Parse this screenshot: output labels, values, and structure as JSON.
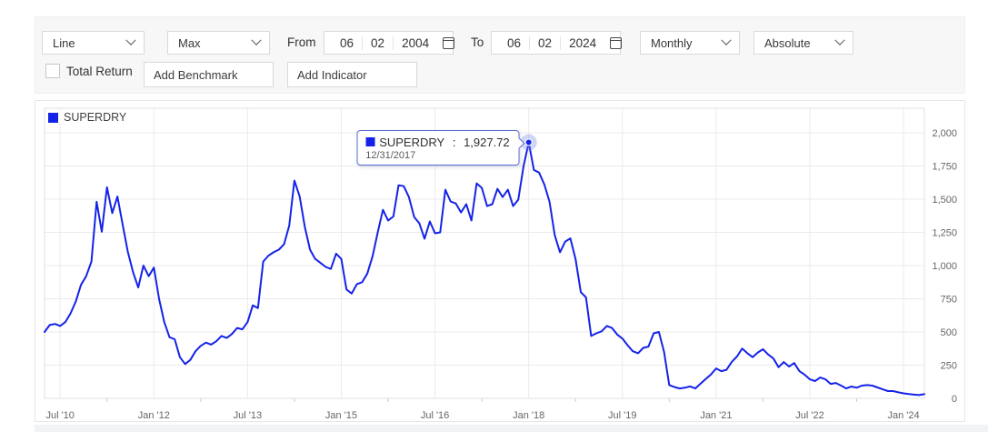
{
  "toolbar": {
    "chart_type": {
      "value": "Line"
    },
    "range": {
      "value": "Max"
    },
    "from_label": "From",
    "to_label": "To",
    "date_from": {
      "month": "06",
      "day": "02",
      "year": "2004"
    },
    "date_to": {
      "month": "06",
      "day": "02",
      "year": "2024"
    },
    "frequency": {
      "value": "Monthly"
    },
    "mode": {
      "value": "Absolute"
    },
    "total_return_label": "Total Return",
    "add_benchmark_placeholder": "Add Benchmark",
    "add_indicator_placeholder": "Add Indicator"
  },
  "legend": {
    "label": "SUPERDRY",
    "color": "#1523e8"
  },
  "tooltip": {
    "series": "SUPERDRY",
    "separator": " : ",
    "value": "1,927.72",
    "date": "12/31/2017"
  },
  "colors": {
    "line": "#1523e8",
    "grid": "#ebebeb",
    "plot_border": "#e2e2e2",
    "axis_text": "#666666",
    "halo": "rgba(110,130,235,0.33)"
  },
  "chart_data": {
    "type": "line",
    "title": "SUPERDRY price history (monthly, absolute)",
    "xlabel": "",
    "ylabel": "",
    "grid": true,
    "legend_position": "top-left",
    "y_axis": {
      "side": "right",
      "min": 0,
      "max": 2000,
      "ticks": [
        0,
        250,
        500,
        750,
        1000,
        1250,
        1500,
        1750,
        2000
      ],
      "tick_labels": [
        "0",
        "250",
        "500",
        "750",
        "1,000",
        "1,250",
        "1,500",
        "1,750",
        "2,000"
      ]
    },
    "x_axis": {
      "start_date": "2010-03-31",
      "frequency": "monthly",
      "points": 170,
      "ticks": [
        {
          "month_index": 3,
          "label": "Jul '10"
        },
        {
          "month_index": 21,
          "label": "Jan '12"
        },
        {
          "month_index": 39,
          "label": "Jul '13"
        },
        {
          "month_index": 57,
          "label": "Jan '15"
        },
        {
          "month_index": 75,
          "label": "Jul '16"
        },
        {
          "month_index": 93,
          "label": "Jan '18"
        },
        {
          "month_index": 111,
          "label": "Jul '19"
        },
        {
          "month_index": 129,
          "label": "Jan '21"
        },
        {
          "month_index": 147,
          "label": "Jul '22"
        },
        {
          "month_index": 165,
          "label": "Jan '24"
        }
      ]
    },
    "series": [
      {
        "name": "SUPERDRY",
        "color": "#1523e8",
        "values": [
          500,
          552,
          560,
          545,
          575,
          640,
          730,
          855,
          920,
          1030,
          1480,
          1255,
          1590,
          1395,
          1520,
          1310,
          1105,
          950,
          835,
          1000,
          920,
          985,
          750,
          575,
          460,
          445,
          310,
          258,
          290,
          355,
          395,
          420,
          405,
          430,
          470,
          455,
          485,
          530,
          520,
          575,
          700,
          680,
          1030,
          1075,
          1100,
          1120,
          1160,
          1300,
          1640,
          1520,
          1290,
          1120,
          1050,
          1020,
          990,
          975,
          1090,
          1050,
          820,
          790,
          860,
          875,
          940,
          1070,
          1250,
          1420,
          1340,
          1370,
          1605,
          1598,
          1516,
          1366,
          1318,
          1202,
          1332,
          1243,
          1250,
          1571,
          1482,
          1468,
          1400,
          1462,
          1339,
          1619,
          1585,
          1448,
          1462,
          1578,
          1516,
          1571,
          1448,
          1496,
          1748,
          1927.72,
          1720,
          1700,
          1610,
          1480,
          1230,
          1100,
          1180,
          1205,
          1050,
          800,
          760,
          470,
          490,
          505,
          545,
          530,
          480,
          450,
          400,
          355,
          340,
          380,
          390,
          490,
          500,
          350,
          100,
          85,
          75,
          80,
          90,
          75,
          110,
          145,
          180,
          225,
          205,
          215,
          275,
          315,
          375,
          340,
          310,
          345,
          370,
          330,
          300,
          235,
          273,
          240,
          266,
          205,
          178,
          143,
          130,
          157,
          143,
          109,
          116,
          96,
          75,
          89,
          80,
          96,
          100,
          96,
          82,
          68,
          55,
          55,
          45,
          38,
          33,
          28,
          25,
          32
        ]
      }
    ],
    "highlight": {
      "index": 93,
      "date": "12/31/2017",
      "value": 1927.72
    }
  }
}
